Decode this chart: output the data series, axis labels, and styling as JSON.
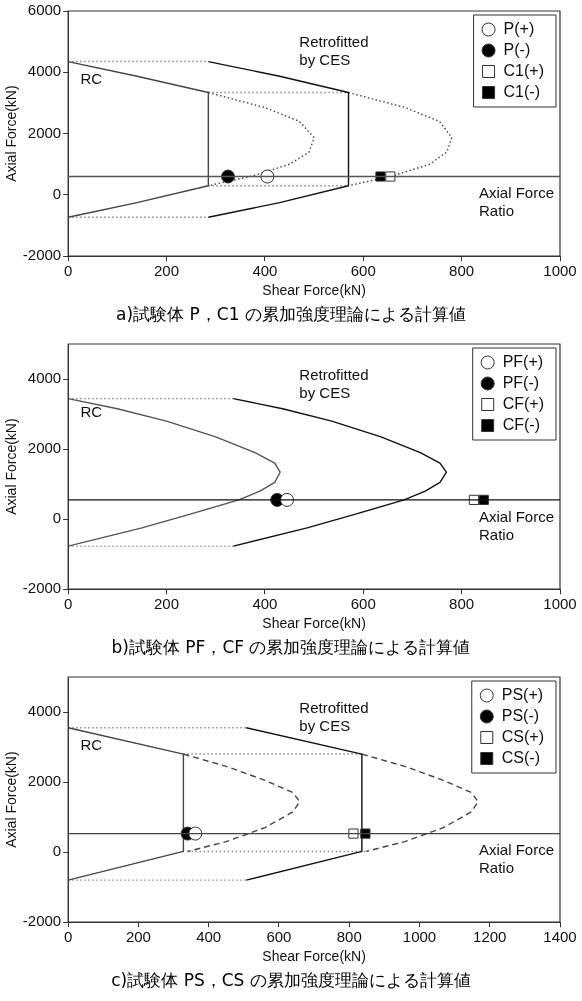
{
  "chart_data": [
    {
      "type": "line",
      "title": "a)試験体 P，C1 の累加強度理論による計算値",
      "xlabel": "Shear Force(kN)",
      "ylabel": "Axial Force(kN)",
      "xlim": [
        0,
        1000
      ],
      "ylim": [
        -2000,
        6000
      ],
      "xticks": [
        0,
        200,
        400,
        600,
        800,
        1000
      ],
      "yticks": [
        -2000,
        0,
        2000,
        4000,
        6000
      ],
      "legend": "top right",
      "annotations": [
        "RC",
        "Retrofitted by CES"
      ],
      "ref_lines": [
        {
          "axis": "y",
          "value": 600,
          "label": "Axial Force Ratio",
          "color": "#555555"
        }
      ],
      "series": [
        {
          "type": "line",
          "color": "#444444",
          "line_style": "solid",
          "x": [
            0,
            140,
            285,
            285,
            140,
            0
          ],
          "values": [
            4350,
            3870,
            3340,
            300,
            -250,
            -730
          ]
        },
        {
          "type": "line",
          "color": "#444444",
          "line_style": "dotted",
          "x": [
            285,
            400,
            470,
            500,
            490,
            450,
            375,
            285
          ],
          "values": [
            3340,
            2850,
            2400,
            1870,
            1400,
            1000,
            620,
            300
          ]
        },
        {
          "type": "line",
          "color": "#111111",
          "line_style": "solid",
          "x": [
            285,
            430,
            570,
            570,
            430,
            285
          ],
          "values": [
            4350,
            3870,
            3340,
            300,
            -250,
            -730
          ]
        },
        {
          "type": "line",
          "color": "#444444",
          "line_style": "dotted",
          "x": [
            570,
            685,
            755,
            780,
            770,
            735,
            660,
            570
          ],
          "values": [
            3340,
            2850,
            2400,
            1870,
            1400,
            1000,
            620,
            300
          ]
        },
        {
          "type": "line",
          "color": "#888888",
          "line_style": "dotted",
          "x": [
            0,
            285
          ],
          "values": [
            4350,
            4350
          ]
        },
        {
          "type": "line",
          "color": "#888888",
          "line_style": "dotted",
          "x": [
            0,
            285
          ],
          "values": [
            -730,
            -730
          ]
        },
        {
          "type": "line",
          "color": "#888888",
          "line_style": "dotted",
          "x": [
            285,
            570
          ],
          "values": [
            3340,
            3340
          ]
        },
        {
          "type": "line",
          "color": "#888888",
          "line_style": "dotted",
          "x": [
            285,
            570
          ],
          "values": [
            300,
            300
          ]
        },
        {
          "type": "scatter",
          "name": "P(+)",
          "marker": "circle",
          "color": "#ffffff",
          "x": [
            405
          ],
          "values": [
            600
          ]
        },
        {
          "type": "scatter",
          "name": "P(-)",
          "marker": "circle",
          "color": "#000000",
          "x": [
            325
          ],
          "values": [
            600
          ]
        },
        {
          "type": "scatter",
          "name": "C1(+)",
          "marker": "square",
          "color": "#ffffff",
          "x": [
            655
          ],
          "values": [
            600
          ]
        },
        {
          "type": "scatter",
          "name": "C1(-)",
          "marker": "square",
          "color": "#000000",
          "x": [
            635
          ],
          "values": [
            600
          ]
        }
      ]
    },
    {
      "type": "line",
      "title": "b)試験体 PF，CF の累加強度理論による計算値",
      "xlabel": "Shear Force(kN)",
      "ylabel": "Axial Force(kN)",
      "xlim": [
        0,
        1000
      ],
      "ylim": [
        -2000,
        5000
      ],
      "xticks": [
        0,
        200,
        400,
        600,
        800,
        1000
      ],
      "yticks": [
        -2000,
        0,
        2000,
        4000
      ],
      "legend": "top right",
      "annotations": [
        "RC",
        "Retrofitted by CES"
      ],
      "ref_lines": [
        {
          "axis": "y",
          "value": 550,
          "label": "Axial Force Ratio",
          "color": "#111111"
        }
      ],
      "series": [
        {
          "type": "line",
          "color": "#555555",
          "line_style": "solid",
          "x": [
            0,
            100,
            200,
            300,
            380,
            420,
            431,
            420,
            390,
            347,
            250,
            150,
            0
          ],
          "values": [
            3440,
            3150,
            2800,
            2350,
            1900,
            1600,
            1340,
            1050,
            800,
            550,
            150,
            -250,
            -770
          ]
        },
        {
          "type": "line",
          "color": "#111111",
          "line_style": "solid",
          "x": [
            336,
            436,
            536,
            636,
            716,
            756,
            769,
            756,
            726,
            683,
            586,
            486,
            336
          ],
          "values": [
            3440,
            3150,
            2800,
            2350,
            1900,
            1600,
            1340,
            1050,
            800,
            550,
            150,
            -250,
            -770
          ]
        },
        {
          "type": "line",
          "color": "#888888",
          "line_style": "dotted",
          "x": [
            0,
            336
          ],
          "values": [
            3440,
            3440
          ]
        },
        {
          "type": "line",
          "color": "#888888",
          "line_style": "dotted",
          "x": [
            0,
            336
          ],
          "values": [
            -770,
            -770
          ]
        },
        {
          "type": "scatter",
          "name": "PF(+)",
          "marker": "circle",
          "color": "#ffffff",
          "x": [
            445
          ],
          "values": [
            550
          ]
        },
        {
          "type": "scatter",
          "name": "PF(-)",
          "marker": "circle",
          "color": "#000000",
          "x": [
            425
          ],
          "values": [
            550
          ]
        },
        {
          "type": "scatter",
          "name": "CF(+)",
          "marker": "square",
          "color": "#ffffff",
          "x": [
            825
          ],
          "values": [
            550
          ]
        },
        {
          "type": "scatter",
          "name": "CF(-)",
          "marker": "square",
          "color": "#000000",
          "x": [
            845
          ],
          "values": [
            550
          ]
        }
      ]
    },
    {
      "type": "line",
      "title": "c)試験体 PS，CS の累加強度理論による計算値",
      "xlabel": "Shear Force(kN)",
      "ylabel": "Axial Force(kN)",
      "xlim": [
        0,
        1400
      ],
      "ylim": [
        -2000,
        5000
      ],
      "xticks": [
        0,
        200,
        400,
        600,
        800,
        1000,
        1200,
        1400
      ],
      "yticks": [
        -2000,
        0,
        2000,
        4000
      ],
      "legend": "top right",
      "annotations": [
        "RC",
        "Retrofitted by CES"
      ],
      "ref_lines": [
        {
          "axis": "y",
          "value": 530,
          "label": "Axial Force Ratio",
          "color": "#444444"
        }
      ],
      "series": [
        {
          "type": "line",
          "color": "#444444",
          "line_style": "solid",
          "x": [
            0,
            328,
            328,
            0
          ],
          "values": [
            3550,
            2800,
            20,
            -800
          ]
        },
        {
          "type": "line",
          "color": "#444444",
          "line_style": "dashed",
          "x": [
            328,
            450,
            560,
            640,
            659,
            640,
            560,
            450,
            340
          ],
          "values": [
            2800,
            2450,
            2050,
            1700,
            1440,
            1150,
            700,
            300,
            20
          ]
        },
        {
          "type": "line",
          "color": "#111111",
          "line_style": "solid",
          "x": [
            507,
            836,
            836,
            507
          ],
          "values": [
            3550,
            2800,
            20,
            -800
          ]
        },
        {
          "type": "line",
          "color": "#444444",
          "line_style": "dashed",
          "x": [
            836,
            958,
            1068,
            1148,
            1167,
            1148,
            1068,
            958,
            848
          ],
          "values": [
            2800,
            2450,
            2050,
            1700,
            1440,
            1150,
            700,
            300,
            20
          ]
        },
        {
          "type": "line",
          "color": "#888888",
          "line_style": "dotted",
          "x": [
            0,
            507
          ],
          "values": [
            3550,
            3550
          ]
        },
        {
          "type": "line",
          "color": "#888888",
          "line_style": "dotted",
          "x": [
            0,
            507
          ],
          "values": [
            -800,
            -800
          ]
        },
        {
          "type": "line",
          "color": "#888888",
          "line_style": "dotted",
          "x": [
            328,
            836
          ],
          "values": [
            2800,
            2800
          ]
        },
        {
          "type": "line",
          "color": "#888888",
          "line_style": "dotted",
          "x": [
            340,
            848
          ],
          "values": [
            20,
            20
          ]
        },
        {
          "type": "scatter",
          "name": "PS(+)",
          "marker": "circle",
          "color": "#ffffff",
          "x": [
            362
          ],
          "values": [
            530
          ]
        },
        {
          "type": "scatter",
          "name": "PS(-)",
          "marker": "circle",
          "color": "#000000",
          "x": [
            340
          ],
          "values": [
            530
          ]
        },
        {
          "type": "scatter",
          "name": "CS(+)",
          "marker": "square",
          "color": "#ffffff",
          "x": [
            812
          ],
          "values": [
            530
          ]
        },
        {
          "type": "scatter",
          "name": "CS(-)",
          "marker": "square",
          "color": "#000000",
          "x": [
            846
          ],
          "values": [
            530
          ]
        }
      ]
    }
  ]
}
